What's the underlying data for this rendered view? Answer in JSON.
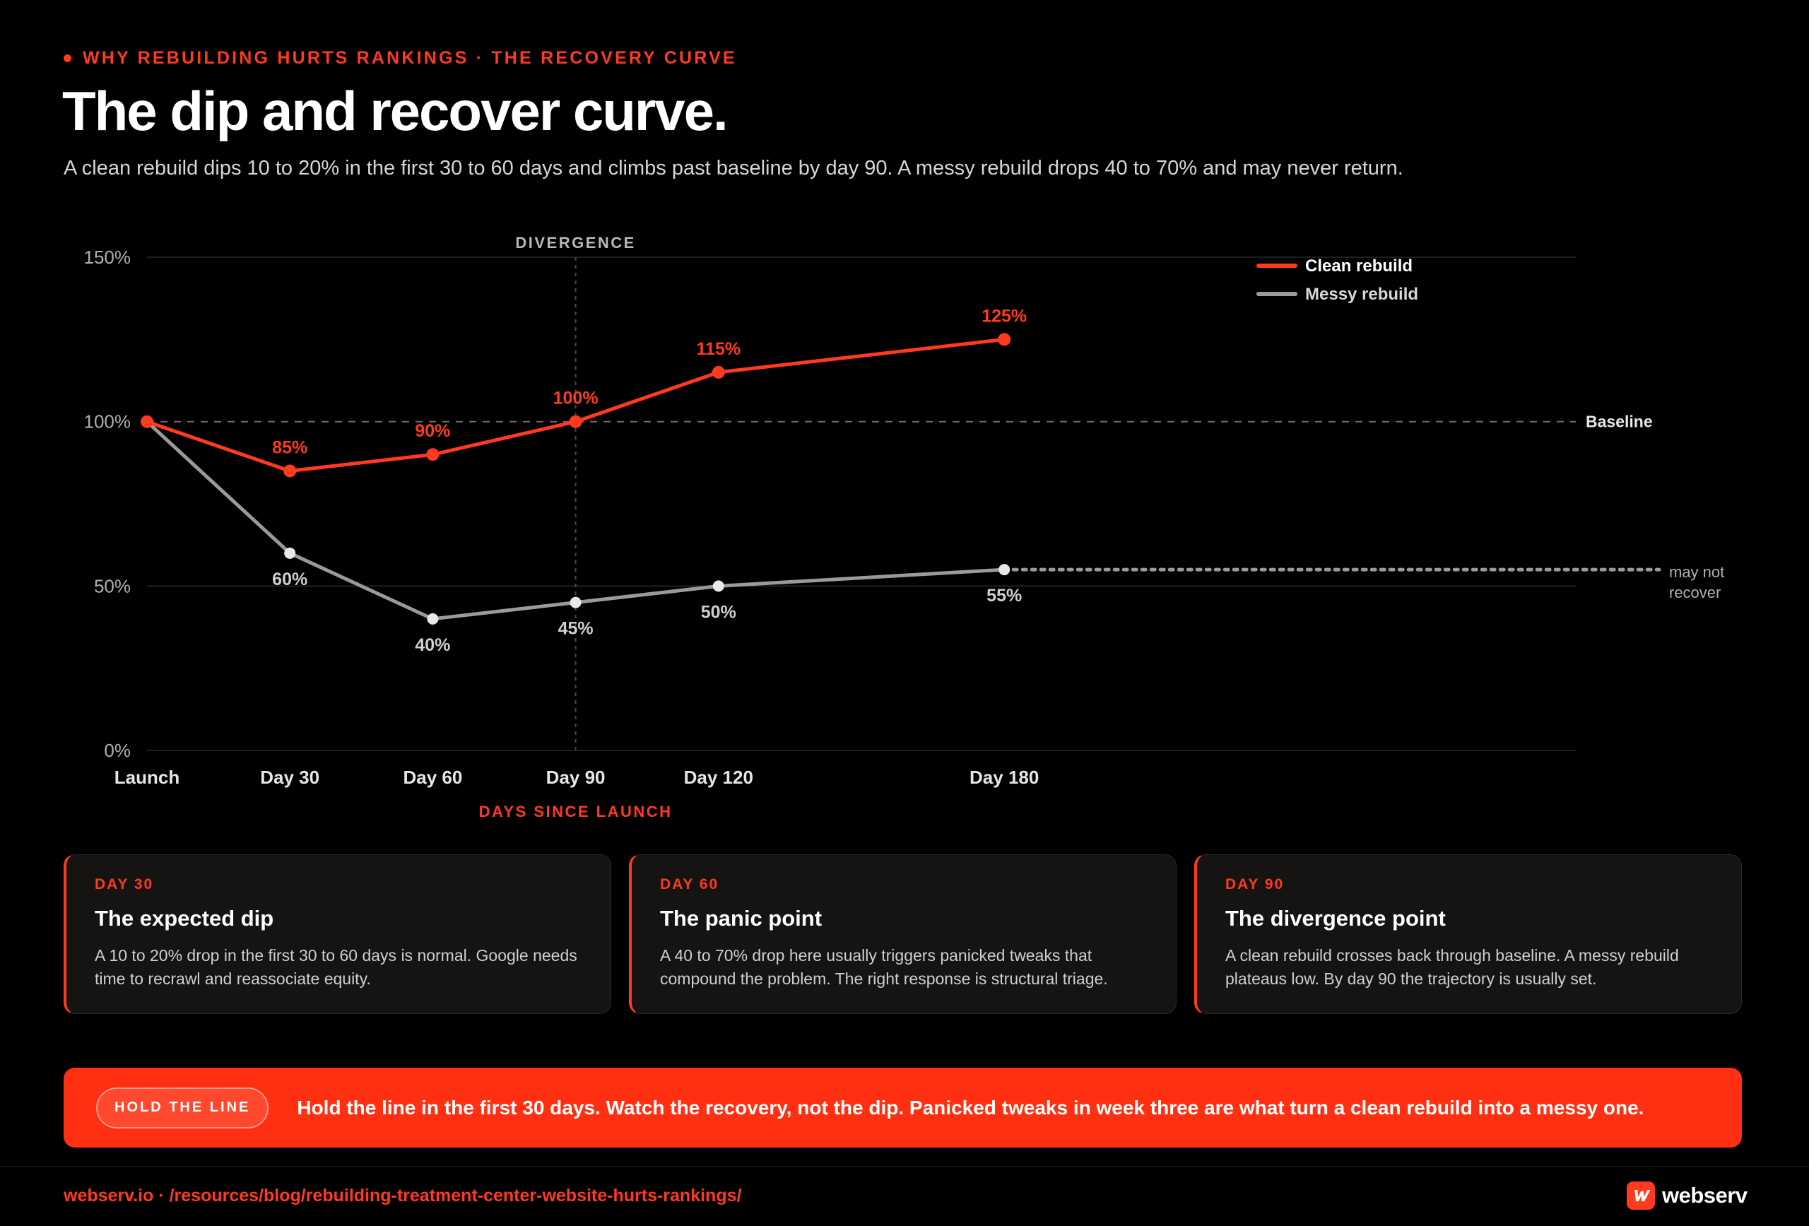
{
  "header": {
    "eyebrow": "WHY REBUILDING HURTS RANKINGS · THE RECOVERY CURVE",
    "title": "The dip and recover curve.",
    "subtitle": "A clean rebuild dips 10 to 20% in the first 30 to 60 days and climbs past baseline by day 90. A messy rebuild drops 40 to 70% and may never return."
  },
  "chart_data": {
    "type": "line",
    "x": [
      0,
      30,
      60,
      90,
      120,
      180
    ],
    "categories": [
      "Launch",
      "Day 30",
      "Day 60",
      "Day 90",
      "Day 120",
      "Day 180"
    ],
    "xlabel": "DAYS SINCE LAUNCH",
    "ylabel": "",
    "ylim": [
      0,
      150
    ],
    "yticks": [
      "0%",
      "50%",
      "100%",
      "150%"
    ],
    "series": [
      {
        "name": "Clean rebuild",
        "color": "#ff3a1e",
        "values": [
          100,
          85,
          90,
          100,
          115,
          125
        ],
        "labels": [
          "",
          "85%",
          "90%",
          "100%",
          "115%",
          "125%"
        ]
      },
      {
        "name": "Messy rebuild",
        "color": "#9a9a9a",
        "values": [
          100,
          60,
          40,
          45,
          50,
          55
        ],
        "labels": [
          "",
          "60%",
          "40%",
          "45%",
          "50%",
          "55%"
        ]
      }
    ],
    "baseline": {
      "value": 100,
      "label": "Baseline"
    },
    "divergence": {
      "x": 90,
      "label": "DIVERGENCE"
    },
    "trail_note": [
      "may not",
      "recover"
    ],
    "legend_position": "top-right",
    "grid": true
  },
  "cards": [
    {
      "day": "DAY 30",
      "title": "The expected dip",
      "body": "A 10 to 20% drop in the first 30 to 60 days is normal. Google needs time to recrawl and reassociate equity."
    },
    {
      "day": "DAY 60",
      "title": "The panic point",
      "body": "A 40 to 70% drop here usually triggers panicked tweaks that compound the problem. The right response is structural triage."
    },
    {
      "day": "DAY 90",
      "title": "The divergence point",
      "body": "A clean rebuild crosses back through baseline. A messy rebuild plateaus low. By day 90 the trajectory is usually set."
    }
  ],
  "banner": {
    "pill": "HOLD THE LINE",
    "text": "Hold the line in the first 30 days. Watch the recovery, not the dip. Panicked tweaks in week three are what turn a clean rebuild into a messy one."
  },
  "footer": {
    "url": "webserv.io · /resources/blog/rebuilding-treatment-center-website-hurts-rankings/",
    "brand": "webserv",
    "brand_icon": "webserv-logo-icon"
  },
  "colors": {
    "accent": "#ff3a1e",
    "background": "#000000",
    "muted_series": "#9a9a9a"
  }
}
